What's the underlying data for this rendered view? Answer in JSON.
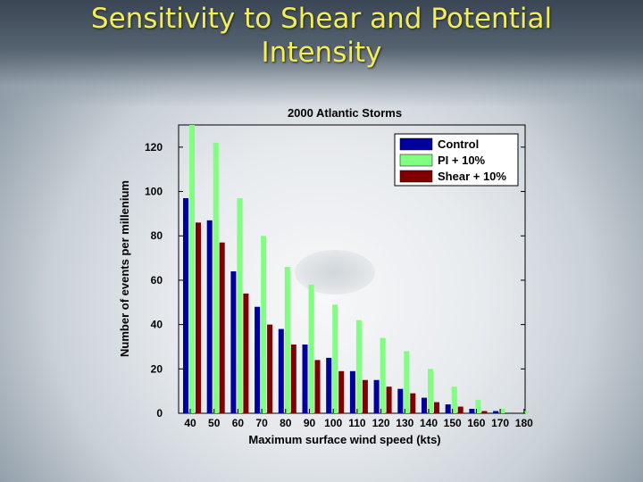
{
  "slide": {
    "title_line1": "Sensitivity to Shear and Potential",
    "title_line2": "Intensity"
  },
  "chart_data": {
    "type": "bar",
    "title": "2000 Atlantic Storms",
    "xlabel": "Maximum surface wind speed (kts)",
    "ylabel": "Number of events per millenium",
    "ylim": [
      0,
      130
    ],
    "yticks": [
      0,
      20,
      40,
      60,
      80,
      100,
      120
    ],
    "categories": [
      "40",
      "50",
      "60",
      "70",
      "80",
      "90",
      "100",
      "110",
      "120",
      "130",
      "140",
      "150",
      "160",
      "170",
      "180"
    ],
    "grid": false,
    "legend_position": "top-right",
    "series": [
      {
        "name": "Control",
        "color": "#0000a0",
        "values": [
          97,
          87,
          64,
          48,
          38,
          31,
          25,
          19,
          15,
          11,
          7,
          4,
          2,
          1,
          0
        ]
      },
      {
        "name": "PI + 10%",
        "color": "#80ff80",
        "values": [
          130,
          122,
          97,
          80,
          66,
          58,
          49,
          42,
          34,
          28,
          20,
          12,
          6,
          2,
          1
        ]
      },
      {
        "name": "Shear + 10%",
        "color": "#800000",
        "values": [
          86,
          77,
          54,
          40,
          31,
          24,
          19,
          15,
          12,
          9,
          5,
          3,
          1,
          0,
          0
        ]
      }
    ]
  }
}
